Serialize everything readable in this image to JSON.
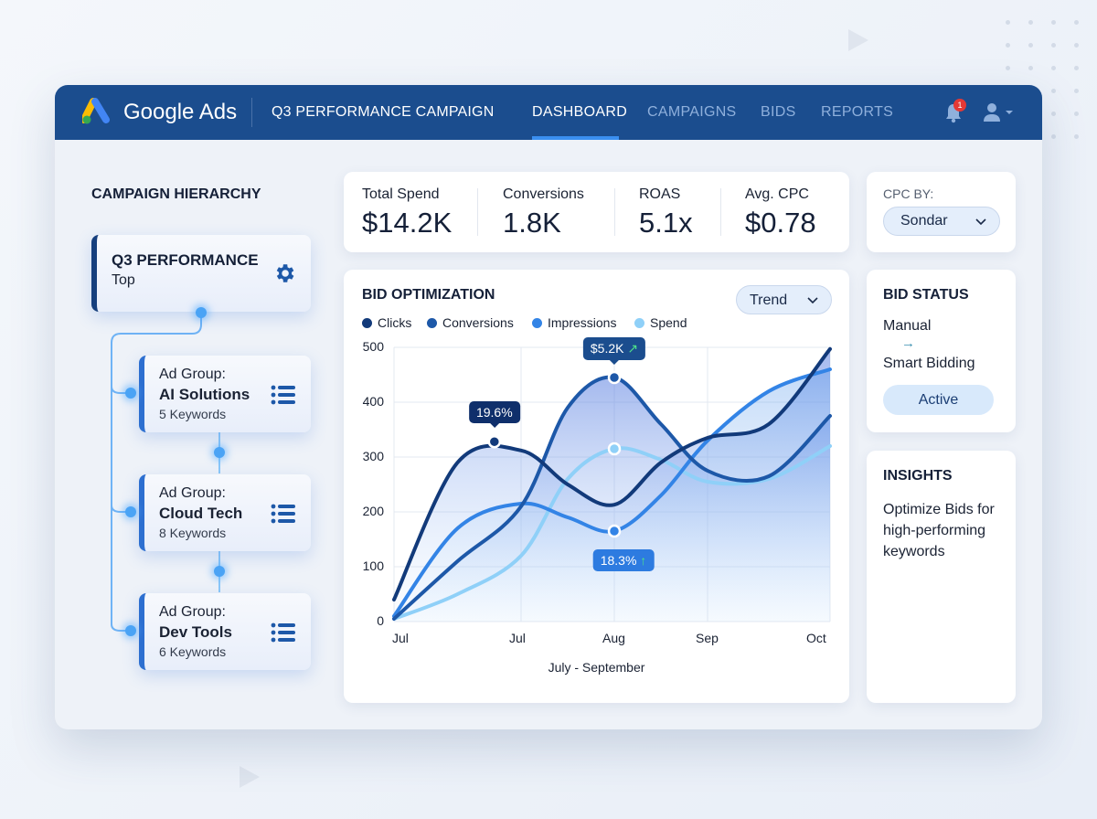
{
  "header": {
    "brand": "Google Ads",
    "campaign": "Q3 PERFORMANCE CAMPAIGN",
    "nav": [
      {
        "label": "DASHBOARD",
        "active": true
      },
      {
        "label": "CAMPAIGNS",
        "active": false
      },
      {
        "label": "BIDS",
        "active": false
      },
      {
        "label": "REPORTS",
        "active": false
      }
    ],
    "notification_count": "1",
    "colors": {
      "header": "#1b4d8e",
      "accent": "#3a8ff0"
    }
  },
  "hierarchy": {
    "title": "CAMPAIGN HIERARCHY",
    "root": {
      "name": "Q3 PERFORMANCE",
      "level": "Top",
      "icon": "gear-icon"
    },
    "groups": [
      {
        "prefix": "Ad Group:",
        "name": "AI Solutions",
        "keywords": "5 Keywords",
        "icon": "list-icon"
      },
      {
        "prefix": "Ad Group:",
        "name": "Cloud Tech",
        "keywords": "8 Keywords",
        "icon": "list-icon"
      },
      {
        "prefix": "Ad Group:",
        "name": "Dev Tools",
        "keywords": "6 Keywords",
        "icon": "list-icon"
      }
    ]
  },
  "stats": [
    {
      "label": "Total Spend",
      "value": "$14.2K"
    },
    {
      "label": "Conversions",
      "value": "1.8K"
    },
    {
      "label": "ROAS",
      "value": "5.1x"
    },
    {
      "label": "Avg. CPC",
      "value": "$0.78"
    }
  ],
  "cpc": {
    "label": "CPC BY:",
    "selected": "Sondar"
  },
  "bid_status": {
    "title": "BID STATUS",
    "from": "Manual",
    "arrow": "→",
    "to": "Smart Bidding",
    "status": "Active"
  },
  "insights": {
    "title": "INSIGHTS",
    "text": "Optimize Bids for high-performing keywords"
  },
  "chart_data": {
    "type": "line",
    "title": "BID OPTIMIZATION",
    "view_select": "Trend",
    "xlabel": "July - September",
    "ylabel": "",
    "ylim": [
      0,
      500
    ],
    "yticks": [
      0,
      100,
      200,
      300,
      400,
      500
    ],
    "xticks": [
      {
        "x": 0,
        "label": "Jul"
      },
      {
        "x": 1,
        "label": "Jul"
      },
      {
        "x": 2,
        "label": "Aug"
      },
      {
        "x": 3,
        "label": "Sep"
      },
      {
        "x": 4,
        "label": "Oct"
      }
    ],
    "grid": true,
    "legend": "top-left",
    "x": [
      0,
      0.5,
      1,
      1.5,
      2,
      2.5,
      3,
      3.5,
      4
    ],
    "series": [
      {
        "name": "Clicks",
        "color": "#123a7a",
        "values": [
          40,
          290,
          312,
          250,
          213,
          290,
          335,
          360,
          497
        ]
      },
      {
        "name": "Conversions",
        "color": "#1d58a8",
        "values": [
          5,
          110,
          210,
          390,
          445,
          360,
          275,
          265,
          375
        ]
      },
      {
        "name": "Impressions",
        "color": "#3384e6",
        "values": [
          10,
          170,
          215,
          190,
          165,
          230,
          330,
          420,
          460
        ]
      },
      {
        "name": "Spend",
        "color": "#8fd0f8",
        "values": [
          5,
          50,
          120,
          260,
          315,
          295,
          255,
          260,
          320
        ]
      }
    ],
    "annotations": [
      {
        "text": "19.6%",
        "x": 0.79,
        "y": 328,
        "series": "Clicks",
        "color": "#0f2f6b"
      },
      {
        "text": "$5.2K",
        "trend": "↗",
        "x": 2,
        "y": 445,
        "series": "Conversions",
        "color": "#1b4d8e"
      },
      {
        "text": "18.3%",
        "trend": "↑",
        "x": 2,
        "y": 165,
        "series": "Impressions",
        "color": "#2d7be0"
      }
    ],
    "markers": [
      {
        "x": 2,
        "y": 315,
        "series": "Spend"
      }
    ]
  }
}
